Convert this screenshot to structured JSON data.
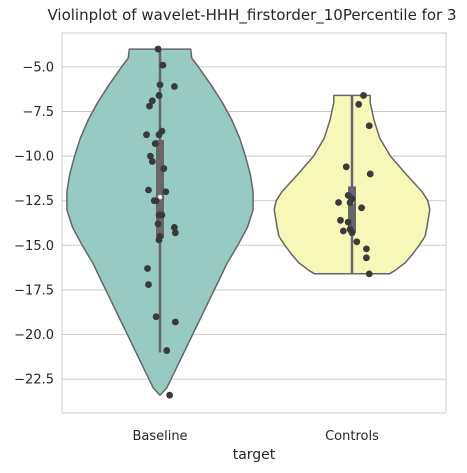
{
  "chart_data": {
    "type": "violin",
    "title": "Violinplot of wavelet-HHH_firstorder_10Percentile for 3",
    "xlabel": "target",
    "ylabel": "",
    "categories": [
      "Baseline",
      "Controls"
    ],
    "ylim": [
      -24.4,
      -3.1
    ],
    "yticks": [
      -5.0,
      -7.5,
      -10.0,
      -12.5,
      -15.0,
      -17.5,
      -20.0,
      -22.5
    ],
    "ytick_labels": [
      "−5.0",
      "−7.5",
      "−10.0",
      "−12.5",
      "−15.0",
      "−17.5",
      "−20.0",
      "−22.5"
    ],
    "grid": true,
    "colors": {
      "Baseline": "#96cac2",
      "Controls": "#f7f7b9",
      "outline": "#666666",
      "points": "#3a3a3a",
      "grid": "#cccccc",
      "spine": "#cccccc"
    },
    "violins": [
      {
        "category": "Baseline",
        "profile": [
          [
            -23.4,
            0.0
          ],
          [
            -23.0,
            0.07
          ],
          [
            -22.0,
            0.16
          ],
          [
            -21.0,
            0.25
          ],
          [
            -20.0,
            0.34
          ],
          [
            -19.0,
            0.43
          ],
          [
            -18.0,
            0.52
          ],
          [
            -17.0,
            0.61
          ],
          [
            -16.0,
            0.7
          ],
          [
            -15.0,
            0.81
          ],
          [
            -14.0,
            0.91
          ],
          [
            -13.0,
            0.97
          ],
          [
            -12.0,
            0.97
          ],
          [
            -11.0,
            0.94
          ],
          [
            -10.0,
            0.89
          ],
          [
            -9.0,
            0.83
          ],
          [
            -8.0,
            0.75
          ],
          [
            -7.0,
            0.65
          ],
          [
            -6.0,
            0.53
          ],
          [
            -5.0,
            0.4
          ],
          [
            -4.5,
            0.33
          ],
          [
            -4.0,
            0.32
          ],
          [
            -4.0,
            0.0
          ]
        ],
        "box": {
          "q1": -14.6,
          "q3": -9.1,
          "median": -12.3,
          "whisker_low": -21.0,
          "whisker_high": -4.0
        },
        "points": [
          [
            -4.0,
            -0.02
          ],
          [
            -4.9,
            0.03
          ],
          [
            -6.1,
            0.15
          ],
          [
            -6.0,
            0.0
          ],
          [
            -6.6,
            -0.01
          ],
          [
            -6.9,
            -0.08
          ],
          [
            -7.2,
            -0.11
          ],
          [
            -8.6,
            0.02
          ],
          [
            -8.8,
            -0.14
          ],
          [
            -8.8,
            -0.01
          ],
          [
            -9.3,
            -0.05
          ],
          [
            -10.0,
            -0.1
          ],
          [
            -10.3,
            -0.08
          ],
          [
            -10.7,
            0.04
          ],
          [
            -11.9,
            -0.12
          ],
          [
            -12.0,
            0.06
          ],
          [
            -12.5,
            -0.06
          ],
          [
            -12.5,
            -0.04
          ],
          [
            -13.3,
            -0.01
          ],
          [
            -13.3,
            0.02
          ],
          [
            -13.8,
            -0.02
          ],
          [
            -14.0,
            0.15
          ],
          [
            -14.3,
            0.16
          ],
          [
            -14.5,
            0.0
          ],
          [
            -14.7,
            -0.01
          ],
          [
            -16.3,
            -0.13
          ],
          [
            -17.2,
            -0.12
          ],
          [
            -19.0,
            -0.04
          ],
          [
            -19.3,
            0.16
          ],
          [
            -20.9,
            0.07
          ],
          [
            -23.4,
            0.1
          ]
        ]
      },
      {
        "category": "Controls",
        "profile": [
          [
            -16.6,
            0.0
          ],
          [
            -16.6,
            0.39
          ],
          [
            -16.4,
            0.45
          ],
          [
            -16.0,
            0.55
          ],
          [
            -15.5,
            0.63
          ],
          [
            -15.0,
            0.7
          ],
          [
            -14.5,
            0.76
          ],
          [
            -14.0,
            0.78
          ],
          [
            -13.0,
            0.81
          ],
          [
            -12.5,
            0.79
          ],
          [
            -12.0,
            0.73
          ],
          [
            -11.0,
            0.56
          ],
          [
            -10.0,
            0.4
          ],
          [
            -9.0,
            0.29
          ],
          [
            -8.0,
            0.23
          ],
          [
            -7.0,
            0.19
          ],
          [
            -6.6,
            0.19
          ],
          [
            -6.6,
            0.0
          ]
        ],
        "box": {
          "q1": -14.3,
          "q3": -11.7,
          "median": -12.6,
          "whisker_low": -16.6,
          "whisker_high": -6.6
        },
        "points": [
          [
            -6.6,
            0.12
          ],
          [
            -7.1,
            0.07
          ],
          [
            -8.3,
            0.18
          ],
          [
            -10.6,
            -0.06
          ],
          [
            -11.0,
            0.19
          ],
          [
            -12.2,
            -0.04
          ],
          [
            -12.4,
            0.0
          ],
          [
            -12.6,
            -0.02
          ],
          [
            -12.6,
            -0.14
          ],
          [
            -12.9,
            0.1
          ],
          [
            -13.6,
            -0.12
          ],
          [
            -13.7,
            -0.04
          ],
          [
            -14.1,
            -0.02
          ],
          [
            -14.2,
            -0.09
          ],
          [
            -14.3,
            0.0
          ],
          [
            -14.8,
            0.05
          ],
          [
            -15.2,
            0.15
          ],
          [
            -15.7,
            0.15
          ],
          [
            -16.6,
            0.18
          ]
        ]
      }
    ]
  }
}
